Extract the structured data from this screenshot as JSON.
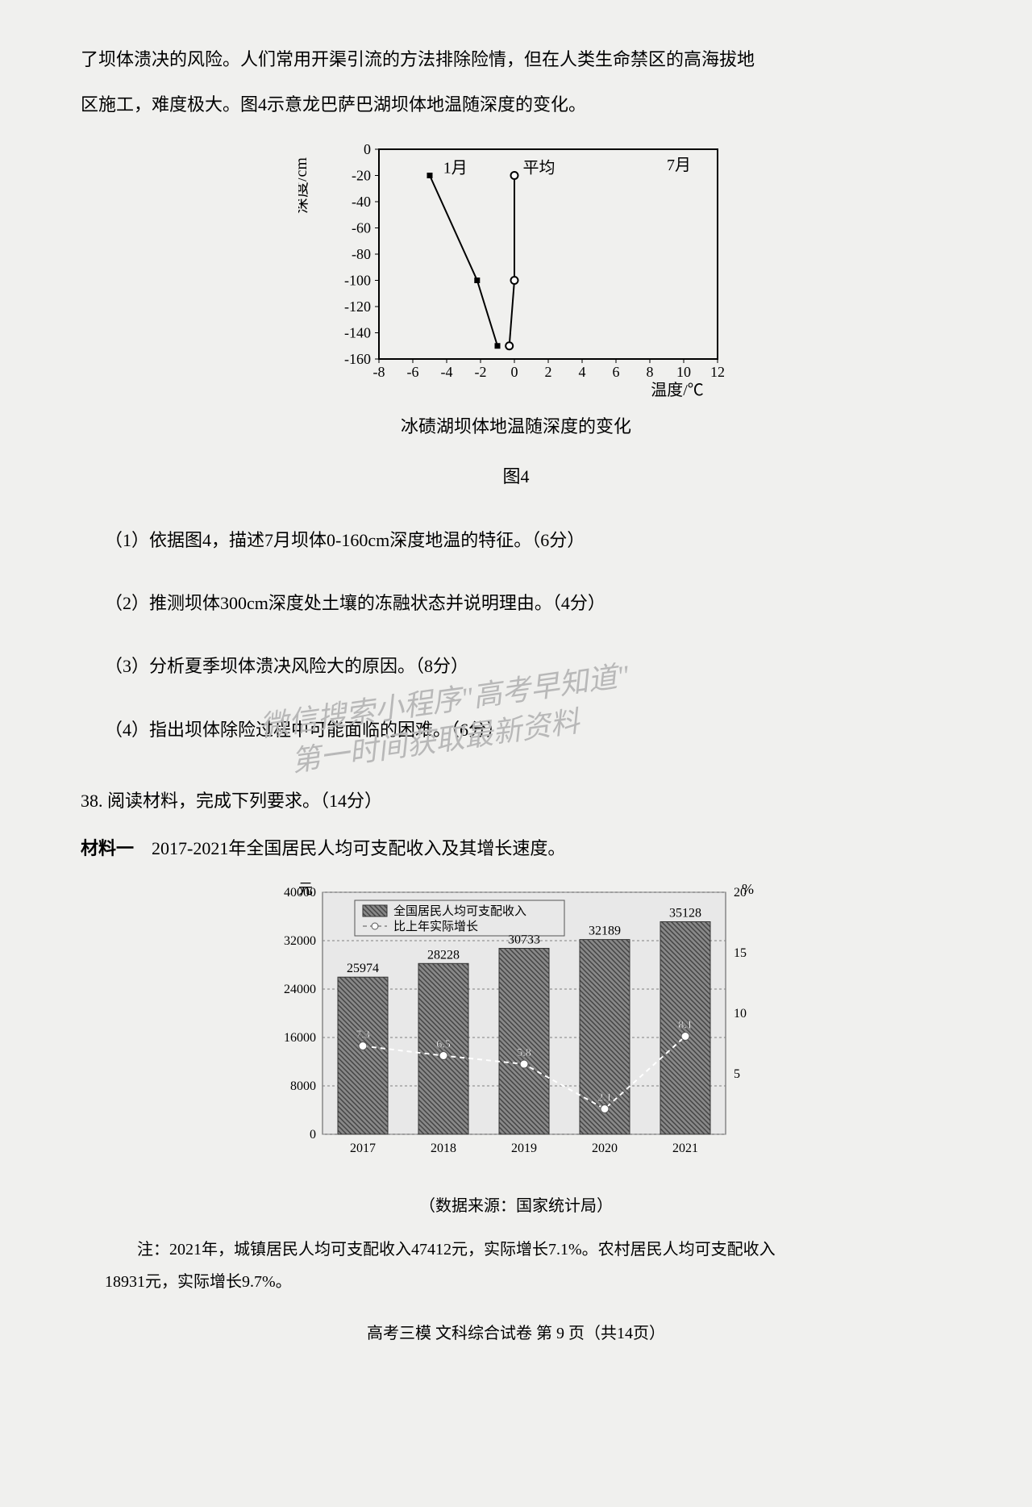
{
  "intro": {
    "line1": "了坝体溃决的风险。人们常用开渠引流的方法排除险情，但在人类生命禁区的高海拔地",
    "line2": "区施工，难度极大。图4示意龙巴萨巴湖坝体地温随深度的变化。"
  },
  "chart1": {
    "type": "line",
    "y_label": "深度/cm",
    "x_label": "温度/℃",
    "caption": "冰碛湖坝体地温随深度的变化",
    "fig_label": "图4",
    "xlim": [
      -8,
      12
    ],
    "ylim": [
      -160,
      0
    ],
    "xtick_step": 2,
    "ytick_step": 20,
    "x_ticks": [
      -8,
      -6,
      -4,
      -2,
      0,
      2,
      4,
      6,
      8,
      10,
      12
    ],
    "y_ticks": [
      0,
      -20,
      -40,
      -60,
      -80,
      -100,
      -120,
      -140,
      -160
    ],
    "series": [
      {
        "name": "1月",
        "label": "1月",
        "marker": "square",
        "color": "#000000",
        "points": [
          [
            -5,
            -20
          ],
          [
            -2.2,
            -100
          ],
          [
            -1,
            -150
          ]
        ]
      },
      {
        "name": "平均",
        "label": "平均",
        "marker": "circle",
        "color": "#000000",
        "points": [
          [
            0,
            -20
          ],
          [
            0,
            -100
          ],
          [
            -0.3,
            -150
          ]
        ]
      },
      {
        "name": "7月",
        "label": "7月",
        "marker": "none",
        "color": "#000000",
        "points": []
      }
    ],
    "background_color": "#f0f0ee",
    "axis_color": "#000000",
    "line_width": 2,
    "marker_size": 7,
    "label_fontsize": 20
  },
  "questions": {
    "q1": "（1）依据图4，描述7月坝体0-160cm深度地温的特征。（6分）",
    "q2": "（2）推测坝体300cm深度处土壤的冻融状态并说明理由。（4分）",
    "q3": "（3）分析夏季坝体溃决风险大的原因。（8分）",
    "q4": "（4）指出坝体除险过程中可能面临的困难。（6分）"
  },
  "watermarks": {
    "w1": "微信搜索小程序\"高考早知道\"",
    "w2": "第一时间获取最新资料"
  },
  "q38": {
    "heading": "38.  阅读材料，完成下列要求。（14分）",
    "material_bold": "材料一",
    "material_rest": "　2017-2021年全国居民人均可支配收入及其增长速度。"
  },
  "chart2": {
    "type": "bar",
    "y_left_label": "元",
    "y_right_label": "%",
    "legend_bar": "全国居民人均可支配收入",
    "legend_line": "比上年实际增长",
    "categories": [
      "2017",
      "2018",
      "2019",
      "2020",
      "2021"
    ],
    "bar_values": [
      25974,
      28228,
      30733,
      32189,
      35128
    ],
    "line_values": [
      7.3,
      6.5,
      5.8,
      2.1,
      8.1
    ],
    "y_left_lim": [
      0,
      40000
    ],
    "y_left_ticks": [
      0,
      8000,
      16000,
      24000,
      32000,
      40000
    ],
    "y_right_lim": [
      0,
      20
    ],
    "y_right_ticks": [
      5,
      10,
      15,
      20
    ],
    "bar_color": "#7a7a7a",
    "bar_pattern": "hatch",
    "line_color": "#ffffff",
    "line_marker": "circle",
    "background_color": "#e8e8e8",
    "grid_color": "#808080",
    "caption": "（数据来源：国家统计局）"
  },
  "note": {
    "line1": "注：2021年，城镇居民人均可支配收入47412元，实际增长7.1%。农村居民人均可支配收入",
    "line2": "18931元，实际增长9.7%。"
  },
  "footer": "高考三模  文科综合试卷  第 9 页（共14页）"
}
